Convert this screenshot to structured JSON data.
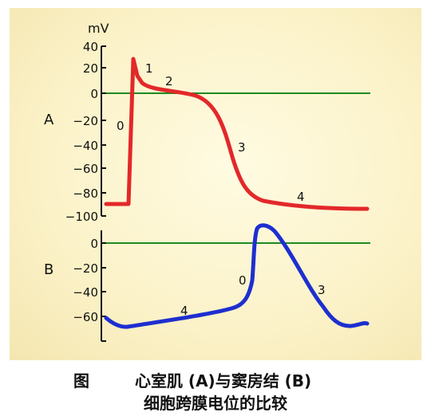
{
  "axis_unit": "mV",
  "panel_a": {
    "label": "A",
    "ticks": [
      "40",
      "20",
      "0",
      "−20",
      "−40",
      "−60",
      "−80",
      "−100"
    ],
    "phases": [
      "0",
      "1",
      "2",
      "3",
      "4"
    ],
    "color": "#e3282a"
  },
  "panel_b": {
    "label": "B",
    "ticks": [
      "0",
      "−20",
      "−40",
      "−60"
    ],
    "phases": [
      "0",
      "3",
      "4"
    ],
    "color": "#1d2fd0"
  },
  "zero_line_color": "#1e8a1e",
  "caption": {
    "fig_label": "图",
    "line1": "心室肌 (A)与窦房结 (B)",
    "line2": "细胞跨膜电位的比较"
  }
}
